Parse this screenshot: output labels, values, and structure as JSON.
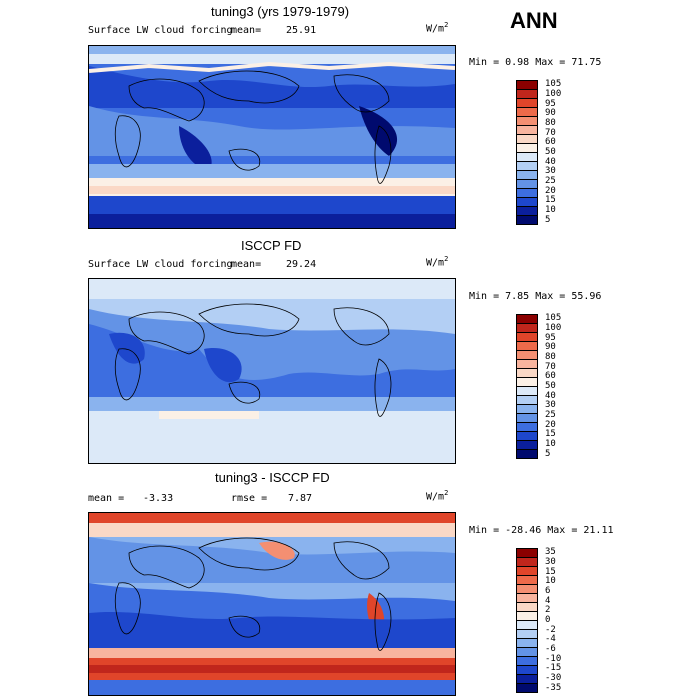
{
  "season": "ANN",
  "panels": [
    {
      "title": "tuning3 (yrs 1979-1979)",
      "field": "Surface LW cloud forcing",
      "mean_label": "mean=",
      "mean": "25.91",
      "units_base": "W/m",
      "units_exp": "2",
      "minmax": "Min =   0.98 Max =  71.75"
    },
    {
      "title": "ISCCP FD",
      "field": "Surface LW cloud forcing",
      "mean_label": "mean=",
      "mean": "29.24",
      "units_base": "W/m",
      "units_exp": "2",
      "minmax": "Min =   7.85 Max =  55.96"
    },
    {
      "title": "tuning3 - ISCCP FD",
      "mean_label": "mean =",
      "mean": "-3.33",
      "rmse_label": "rmse =",
      "rmse": "7.87",
      "units_base": "W/m",
      "units_exp": "2",
      "minmax": "Min = -28.46 Max =  21.11"
    }
  ],
  "colorbar_abs": {
    "labels": [
      "105",
      "100",
      "95",
      "90",
      "80",
      "70",
      "60",
      "50",
      "40",
      "30",
      "25",
      "20",
      "15",
      "10",
      "5"
    ],
    "colors": [
      "#8b0000",
      "#c0261c",
      "#e0452a",
      "#ee6a4a",
      "#f48f72",
      "#f8b49e",
      "#fad8c6",
      "#fbf0e6",
      "#dce9f8",
      "#b3cff4",
      "#8ab3ee",
      "#6393e6",
      "#3d6ee0",
      "#1e47cc",
      "#0b1f9c",
      "#000a6e"
    ]
  },
  "colorbar_diff": {
    "labels": [
      "35",
      "30",
      "15",
      "10",
      "6",
      "4",
      "2",
      "0",
      "-2",
      "-4",
      "-6",
      "-10",
      "-15",
      "-30",
      "-35"
    ],
    "colors": [
      "#8b0000",
      "#c0261c",
      "#e0452a",
      "#ee6a4a",
      "#f48f72",
      "#f8b49e",
      "#fad8c6",
      "#fbf0e6",
      "#dce9f8",
      "#b3cff4",
      "#8ab3ee",
      "#6393e6",
      "#3d6ee0",
      "#1e47cc",
      "#0b1f9c",
      "#000a6e"
    ]
  }
}
